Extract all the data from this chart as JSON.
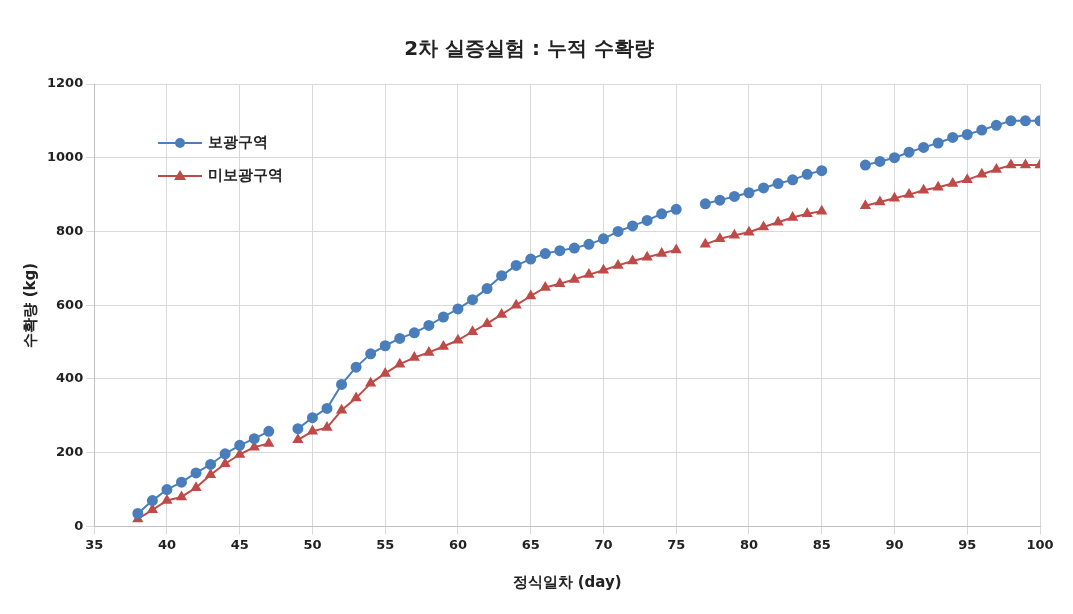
{
  "chart_data": {
    "type": "line",
    "title": "2차 실증실험 : 누적 수확량",
    "xlabel": "정식일차 (day)",
    "ylabel": "수확량 (kg)",
    "x": [
      38,
      39,
      40,
      41,
      42,
      43,
      44,
      45,
      46,
      47,
      48,
      49,
      50,
      51,
      52,
      53,
      54,
      55,
      56,
      57,
      58,
      59,
      60,
      61,
      62,
      63,
      64,
      65,
      66,
      67,
      68,
      69,
      70,
      71,
      72,
      73,
      74,
      75,
      76,
      77,
      78,
      79,
      80,
      81,
      82,
      83,
      84,
      85,
      86,
      87,
      88,
      89,
      90,
      91,
      92,
      93,
      94,
      95,
      96,
      97,
      98,
      99,
      100
    ],
    "series": [
      {
        "name": "보광구역",
        "color": "#4a7ebb",
        "marker": "circle",
        "values": [
          35,
          70,
          100,
          120,
          145,
          168,
          197,
          220,
          238,
          258,
          null,
          265,
          295,
          320,
          385,
          432,
          468,
          490,
          510,
          525,
          545,
          568,
          590,
          615,
          645,
          680,
          708,
          725,
          740,
          748,
          755,
          765,
          780,
          800,
          815,
          830,
          848,
          860,
          null,
          875,
          885,
          895,
          905,
          918,
          930,
          940,
          955,
          965,
          null,
          null,
          980,
          990,
          1000,
          1015,
          1028,
          1040,
          1055,
          1063,
          1075,
          1088,
          1100,
          1100,
          1100
        ]
      },
      {
        "name": "미보광구역",
        "color": "#be4b48",
        "marker": "triangle",
        "values": [
          20,
          45,
          70,
          80,
          105,
          140,
          170,
          195,
          215,
          225,
          null,
          235,
          258,
          268,
          315,
          348,
          388,
          415,
          440,
          458,
          472,
          488,
          505,
          528,
          550,
          575,
          600,
          625,
          648,
          658,
          670,
          683,
          695,
          708,
          720,
          730,
          740,
          750,
          null,
          765,
          780,
          790,
          798,
          812,
          825,
          838,
          848,
          855,
          null,
          null,
          870,
          880,
          890,
          900,
          912,
          920,
          930,
          940,
          955,
          968,
          980,
          980,
          980
        ]
      }
    ],
    "xlim": [
      35,
      100
    ],
    "xticks": [
      35,
      40,
      45,
      50,
      55,
      60,
      65,
      70,
      75,
      80,
      85,
      90,
      95,
      100
    ],
    "ylim": [
      0,
      1200
    ],
    "yticks": [
      0,
      200,
      400,
      600,
      800,
      1000,
      1200
    ],
    "grid": true,
    "legend": "top left",
    "line_style": "solid"
  }
}
